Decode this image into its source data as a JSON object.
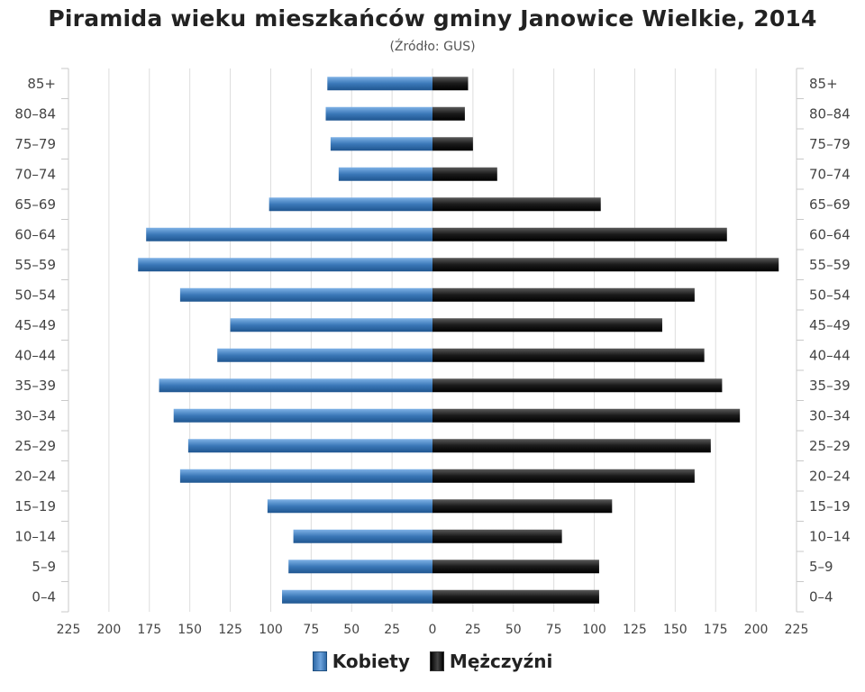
{
  "title": "Piramida wieku mieszkańców gminy Janowice Wielkie, 2014",
  "subtitle": "(Źródło: GUS)",
  "colors": {
    "women": "#4a86c5",
    "men": "#1a1a1a",
    "grid": "#dddddd"
  },
  "chart_data": {
    "type": "bar",
    "orientation": "horizontal-pyramid",
    "categories": [
      "85+",
      "80–84",
      "75–79",
      "70–74",
      "65–69",
      "60–64",
      "55–59",
      "50–54",
      "45–49",
      "40–44",
      "35–39",
      "30–34",
      "25–29",
      "20–24",
      "15–19",
      "10–14",
      "5–9",
      "0–4"
    ],
    "series": [
      {
        "name": "Kobiety",
        "side": "left",
        "values": [
          65,
          66,
          63,
          58,
          101,
          177,
          182,
          156,
          125,
          133,
          169,
          160,
          151,
          156,
          102,
          86,
          89,
          93
        ]
      },
      {
        "name": "Mężczyźni",
        "side": "right",
        "values": [
          22,
          20,
          25,
          40,
          104,
          182,
          214,
          162,
          142,
          168,
          179,
          190,
          172,
          162,
          111,
          80,
          103,
          103
        ]
      }
    ],
    "x_ticks": [
      "225",
      "200",
      "175",
      "150",
      "125",
      "100",
      "75",
      "50",
      "25",
      "0",
      "25",
      "50",
      "75",
      "100",
      "125",
      "150",
      "175",
      "200",
      "225"
    ],
    "xlim": [
      -225,
      225
    ],
    "grid": true,
    "legend_position": "bottom-center"
  },
  "legend": {
    "women": "Kobiety",
    "men": "Mężczyźni"
  }
}
